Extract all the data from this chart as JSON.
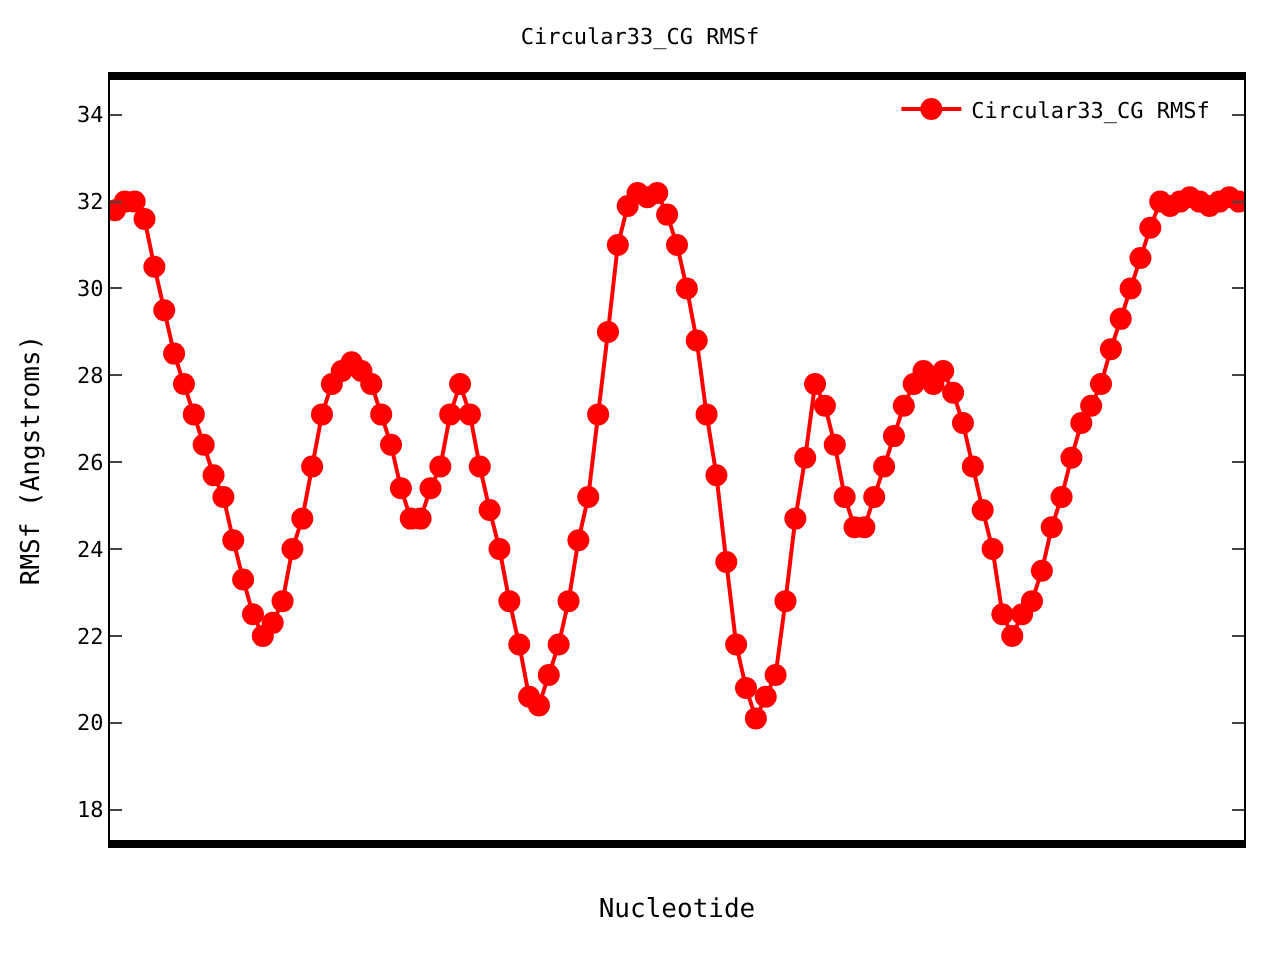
{
  "chart_data": {
    "type": "line",
    "title": "Circular33_CG RMSf",
    "xlabel": "Nucleotide",
    "ylabel": "RMSf (Angstroms)",
    "categories": [
      null,
      null,
      null,
      null,
      null,
      null,
      null,
      null,
      null,
      null,
      null,
      null,
      null,
      null,
      null,
      null,
      null,
      null,
      null,
      null,
      null,
      null,
      null,
      null,
      null,
      null,
      null,
      null,
      null,
      null,
      null,
      null,
      null,
      null,
      null,
      null,
      null,
      null,
      null,
      null,
      null,
      null,
      null,
      null,
      null,
      null,
      null,
      null,
      null,
      null,
      null,
      null,
      null,
      null,
      null,
      null,
      null,
      null,
      null,
      null,
      null,
      null,
      null,
      null,
      null,
      null,
      null,
      null,
      null,
      null,
      null,
      null,
      null,
      null,
      null,
      null,
      null,
      null,
      null,
      null,
      null,
      null,
      null,
      null,
      null,
      null,
      null,
      null,
      null,
      null,
      null,
      null,
      null,
      null,
      null,
      null,
      null,
      null,
      null,
      null,
      null,
      null,
      null,
      null,
      null,
      null,
      null,
      null,
      null,
      null,
      null,
      null,
      null,
      null,
      null
    ],
    "series": [
      {
        "name": "Circular33_CG RMSf",
        "color": "#ff0000",
        "values": [
          31.8,
          32,
          32,
          31.6,
          30.5,
          29.5,
          28.5,
          27.8,
          27.1,
          26.4,
          25.7,
          25.2,
          24.2,
          23.3,
          22.5,
          22,
          22.3,
          22.8,
          24,
          24.7,
          25.9,
          27.1,
          27.8,
          28.1,
          28.3,
          28.1,
          27.8,
          27.1,
          26.4,
          25.4,
          24.7,
          24.7,
          25.4,
          25.9,
          27.1,
          27.8,
          27.1,
          25.9,
          24.9,
          24,
          22.8,
          21.8,
          20.6,
          20.4,
          21.1,
          21.8,
          22.8,
          24.2,
          25.2,
          27.1,
          29,
          31,
          31.9,
          32.2,
          32.1,
          32.2,
          31.7,
          31,
          30,
          28.8,
          27.1,
          25.7,
          23.7,
          21.8,
          20.8,
          20.1,
          20.6,
          21.1,
          22.8,
          24.7,
          26.1,
          27.8,
          27.3,
          26.4,
          25.2,
          24.5,
          24.5,
          25.2,
          25.9,
          26.6,
          27.3,
          27.8,
          28.1,
          27.8,
          28.1,
          27.6,
          26.9,
          25.9,
          24.9,
          24,
          22.5,
          22,
          22.5,
          22.8,
          23.5,
          24.5,
          25.2,
          26.1,
          26.9,
          27.3,
          27.8,
          28.6,
          29.3,
          30,
          30.7,
          31.4,
          32,
          31.9,
          32,
          32.1,
          32,
          31.9,
          32,
          32.1,
          32
        ]
      }
    ],
    "ylim": [
      17.3,
      34.8
    ],
    "yticks": [
      18,
      20,
      22,
      24,
      26,
      28,
      30,
      32,
      34
    ],
    "marker": "circle",
    "line_style": "solid",
    "legend": "top right"
  }
}
